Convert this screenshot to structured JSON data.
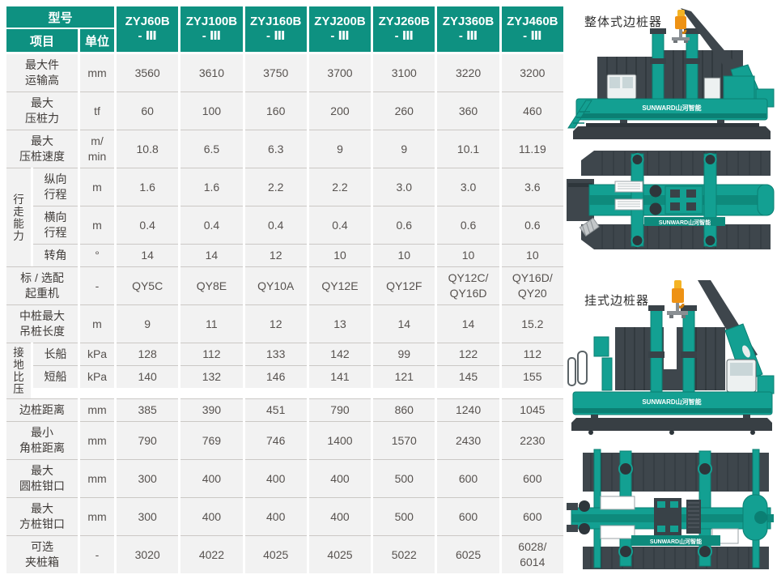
{
  "colors": {
    "header_teal": "#0E9181",
    "machine_teal": "#13A092",
    "machine_dark": "#3E464C",
    "hook_orange": "#EE9214",
    "cell_bg": "#F2F2F2"
  },
  "table": {
    "corner_model": "型号",
    "corner_item": "项目",
    "corner_unit": "单位",
    "models": [
      "ZYJ60B\n- Ⅲ",
      "ZYJ100B\n- Ⅲ",
      "ZYJ160B\n- Ⅲ",
      "ZYJ200B\n- Ⅲ",
      "ZYJ260B\n- Ⅲ",
      "ZYJ360B\n- Ⅲ",
      "ZYJ460B\n- Ⅲ"
    ],
    "rows": [
      {
        "label": "最大件\n运输高",
        "unit": "mm",
        "values": [
          "3560",
          "3610",
          "3750",
          "3700",
          "3100",
          "3220",
          "3200"
        ]
      },
      {
        "label": "最大\n压桩力",
        "unit": "tf",
        "values": [
          "60",
          "100",
          "160",
          "200",
          "260",
          "360",
          "460"
        ]
      },
      {
        "label": "最大\n压桩速度",
        "unit": "m/\nmin",
        "values": [
          "10.8",
          "6.5",
          "6.3",
          "9",
          "9",
          "10.1",
          "11.19"
        ]
      },
      {
        "group": "行\n走\n能\n力",
        "rows": [
          {
            "label": "纵向\n行程",
            "unit": "m",
            "values": [
              "1.6",
              "1.6",
              "2.2",
              "2.2",
              "3.0",
              "3.0",
              "3.6"
            ]
          },
          {
            "label": "横向\n行程",
            "unit": "m",
            "values": [
              "0.4",
              "0.4",
              "0.4",
              "0.4",
              "0.6",
              "0.6",
              "0.6"
            ]
          },
          {
            "label": "转角",
            "unit": "°",
            "values": [
              "14",
              "14",
              "12",
              "10",
              "10",
              "10",
              "10"
            ]
          }
        ]
      },
      {
        "label": "标 / 选配\n起重机",
        "unit": "-",
        "values": [
          "QY5C",
          "QY8E",
          "QY10A",
          "QY12E",
          "QY12F",
          "QY12C/\nQY16D",
          "QY16D/\nQY20"
        ]
      },
      {
        "label": "中桩最大\n吊桩长度",
        "unit": "m",
        "values": [
          "9",
          "11",
          "12",
          "13",
          "14",
          "14",
          "15.2"
        ]
      },
      {
        "group": "接\n地\n比\n压",
        "rows": [
          {
            "label": "长船",
            "unit": "kPa",
            "values": [
              "128",
              "112",
              "133",
              "142",
              "99",
              "122",
              "112"
            ]
          },
          {
            "label": "短船",
            "unit": "kPa",
            "values": [
              "140",
              "132",
              "146",
              "141",
              "121",
              "145",
              "155"
            ]
          }
        ]
      },
      {
        "label": "边桩距离",
        "unit": "mm",
        "values": [
          "385",
          "390",
          "451",
          "790",
          "860",
          "1240",
          "1045"
        ]
      },
      {
        "label": "最小\n角桩距离",
        "unit": "mm",
        "values": [
          "790",
          "769",
          "746",
          "1400",
          "1570",
          "2430",
          "2230"
        ]
      },
      {
        "label": "最大\n圆桩钳口",
        "unit": "mm",
        "values": [
          "300",
          "400",
          "400",
          "400",
          "500",
          "600",
          "600"
        ]
      },
      {
        "label": "最大\n方桩钳口",
        "unit": "mm",
        "values": [
          "300",
          "400",
          "400",
          "400",
          "500",
          "600",
          "600"
        ]
      },
      {
        "label": "可选\n夹桩箱",
        "unit": "-",
        "values": [
          "3020",
          "4022",
          "4025",
          "4025",
          "5022",
          "6025",
          "6028/\n6014"
        ]
      }
    ]
  },
  "side_panel": {
    "integral_label": "整体式边桩器",
    "hanging_label": "挂式边桩器",
    "brand": "SUNWARD山河智能"
  }
}
